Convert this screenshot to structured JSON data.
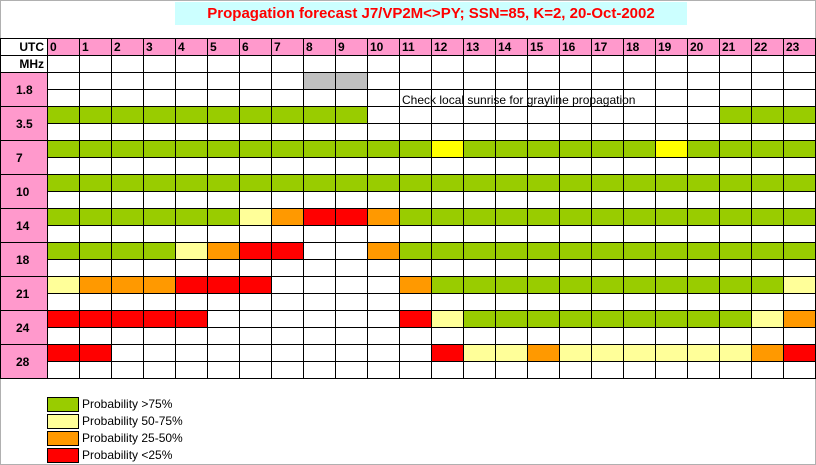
{
  "title": "Propagation forecast J7/VP2M<>PY; SSN=85, K=2, 20-Oct-2002",
  "note": "Check local sunrise for grayline propagation",
  "header": {
    "utc_label": "UTC",
    "mhz_label": "MHz"
  },
  "colors": {
    "G": "#99cc00",
    "Y": "#ffff99",
    "O": "#ff9900",
    "R": "#ff0000",
    "S": "#c0c0c0",
    "W": "#ffffff",
    "header": "#ff99cc",
    "title_bg": "#ccffff",
    "title_text": "#ff0000",
    "note_yellow": "#ffff00"
  },
  "chart_data": {
    "type": "table",
    "title": "Propagation forecast J7/VP2M<>PY; SSN=85, K=2, 20-Oct-2002",
    "hours": [
      "0",
      "1",
      "2",
      "3",
      "4",
      "5",
      "6",
      "7",
      "8",
      "9",
      "10",
      "11",
      "12",
      "13",
      "14",
      "15",
      "16",
      "17",
      "18",
      "19",
      "20",
      "21",
      "22",
      "23"
    ],
    "bands": [
      {
        "mhz": "1.8",
        "row": "WWWWWWWWSSWWWWWWWWWWWWWW"
      },
      {
        "mhz": "3.5",
        "row": "GGGGGGGGGGWWWWWWWWWWWGGG"
      },
      {
        "mhz": "7",
        "row": "GGGGGGGGGGGGnGGGGGGnGGGG"
      },
      {
        "mhz": "10",
        "row": "GGGGGGGGGGGGGGGGGGGGGGGG"
      },
      {
        "mhz": "14",
        "row": "GGGGGGYORROGGGGGGGGGGGGG"
      },
      {
        "mhz": "18",
        "row": "GGGGYORRWWOGGGGGGGGGGGGG"
      },
      {
        "mhz": "21",
        "row": "YOOORRRWWWWOGGGGGGGGGGGY"
      },
      {
        "mhz": "24",
        "row": "RRRRRWWWWWWRYGGGGGGGGGYO"
      },
      {
        "mhz": "28",
        "row": "RRWWWWWWWWWWRYYOYYYYYYOR"
      }
    ],
    "legend": [
      {
        "key": "G",
        "label": "Probability >75%"
      },
      {
        "key": "Y",
        "label": "Probability 50-75%"
      },
      {
        "key": "O",
        "label": "Probability 25-50%"
      },
      {
        "key": "R",
        "label": "Probability <25%"
      }
    ]
  }
}
